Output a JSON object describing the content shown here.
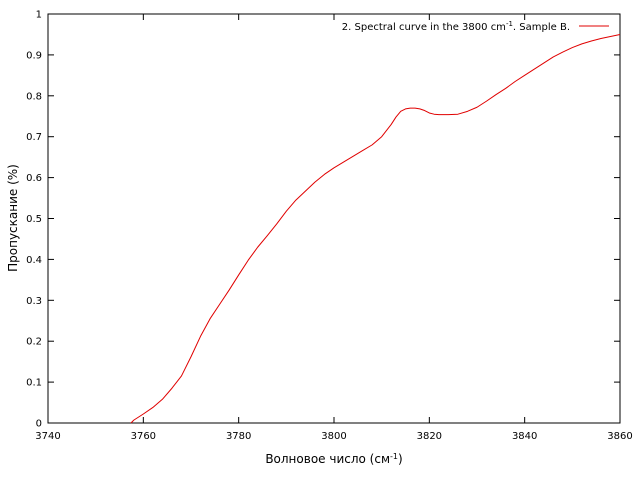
{
  "chart_data": {
    "type": "line",
    "title": "",
    "xlabel": "Волновое число (см",
    "xlabel_sup": "-1",
    "xlabel_suffix": ")",
    "ylabel": "Пропускание (%)",
    "xlim": [
      3740,
      3860
    ],
    "ylim": [
      0,
      1
    ],
    "xticks": [
      "3740",
      "3760",
      "3780",
      "3800",
      "3820",
      "3840",
      "3860"
    ],
    "yticks": [
      "0",
      "0.1",
      "0.2",
      "0.3",
      "0.4",
      "0.5",
      "0.6",
      "0.7",
      "0.8",
      "0.9",
      "1"
    ],
    "grid": false,
    "legend_position": "top-right",
    "series": [
      {
        "name_parts": [
          "2. Spectral curve in the 3800 cm",
          "-1",
          ". Sample B."
        ],
        "color": "#e00000",
        "x": [
          3757.4,
          3758,
          3760,
          3762,
          3764,
          3766,
          3768,
          3770,
          3772,
          3774,
          3776,
          3778,
          3780,
          3782,
          3784,
          3786,
          3788,
          3790,
          3792,
          3794,
          3796,
          3798,
          3800,
          3802,
          3804,
          3806,
          3808,
          3810,
          3812,
          3813,
          3814,
          3815,
          3816,
          3817,
          3818,
          3819,
          3820,
          3821,
          3822,
          3824,
          3826,
          3828,
          3830,
          3832,
          3834,
          3836,
          3838,
          3840,
          3842,
          3844,
          3846,
          3848,
          3850,
          3852,
          3854,
          3856,
          3858,
          3860
        ],
        "y": [
          0.0,
          0.007,
          0.022,
          0.038,
          0.058,
          0.085,
          0.115,
          0.162,
          0.212,
          0.255,
          0.29,
          0.325,
          0.362,
          0.398,
          0.43,
          0.458,
          0.487,
          0.518,
          0.545,
          0.567,
          0.589,
          0.608,
          0.624,
          0.638,
          0.652,
          0.666,
          0.68,
          0.7,
          0.73,
          0.748,
          0.762,
          0.768,
          0.77,
          0.77,
          0.768,
          0.764,
          0.758,
          0.755,
          0.754,
          0.754,
          0.755,
          0.762,
          0.772,
          0.787,
          0.803,
          0.818,
          0.835,
          0.85,
          0.865,
          0.88,
          0.895,
          0.907,
          0.918,
          0.927,
          0.934,
          0.94,
          0.945,
          0.95
        ]
      }
    ]
  }
}
